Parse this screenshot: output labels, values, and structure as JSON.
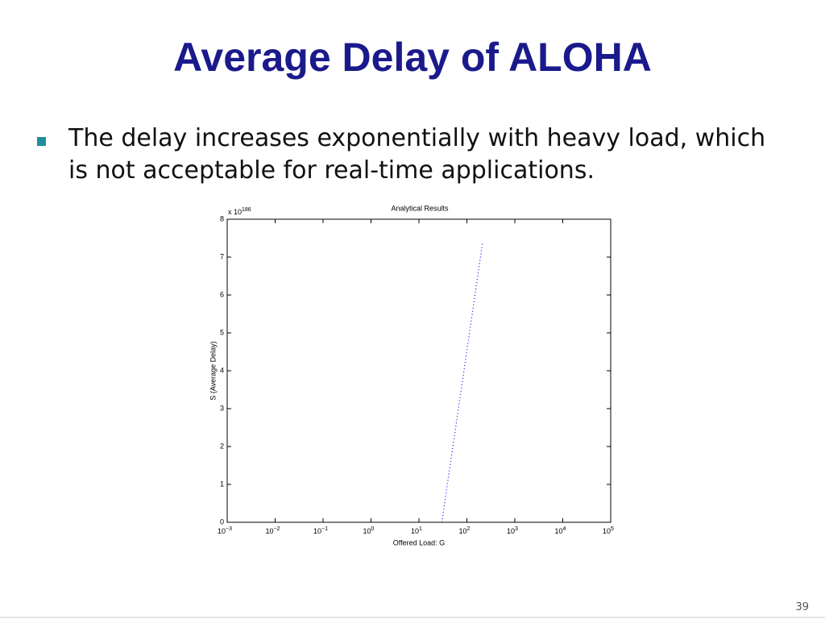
{
  "header": {
    "title": "Average Delay of ALOHA"
  },
  "bullets": [
    "The delay increases exponentially with heavy load, which is not acceptable for real-time applications."
  ],
  "footer": {
    "page": "39"
  },
  "chart_data": {
    "type": "line",
    "title": "Analytical Results",
    "xlabel": "Offered Load: G",
    "ylabel": "S (Average Delay)",
    "y_multiplier": {
      "base": "x 10",
      "exponent": "186"
    },
    "x_scale": "log",
    "xlim": [
      0.001,
      100000
    ],
    "xticks": [
      {
        "value": 0.001,
        "label": "10",
        "exponent": "−3"
      },
      {
        "value": 0.01,
        "label": "10",
        "exponent": "−2"
      },
      {
        "value": 0.1,
        "label": "10",
        "exponent": "−1"
      },
      {
        "value": 1,
        "label": "10",
        "exponent": "0"
      },
      {
        "value": 10,
        "label": "10",
        "exponent": "1"
      },
      {
        "value": 100,
        "label": "10",
        "exponent": "2"
      },
      {
        "value": 1000,
        "label": "10",
        "exponent": "3"
      },
      {
        "value": 10000,
        "label": "10",
        "exponent": "4"
      },
      {
        "value": 100000,
        "label": "10",
        "exponent": "5"
      }
    ],
    "ylim": [
      0,
      8
    ],
    "yticks": [
      0,
      1,
      2,
      3,
      4,
      5,
      6,
      7,
      8
    ],
    "grid": false,
    "series": [
      {
        "color": "#0000ff",
        "line_style": "dotted",
        "x": [
          30,
          50,
          80,
          120,
          160,
          213
        ],
        "values": [
          0,
          1.92,
          3.69,
          5.22,
          6.31,
          7.4
        ]
      }
    ]
  }
}
